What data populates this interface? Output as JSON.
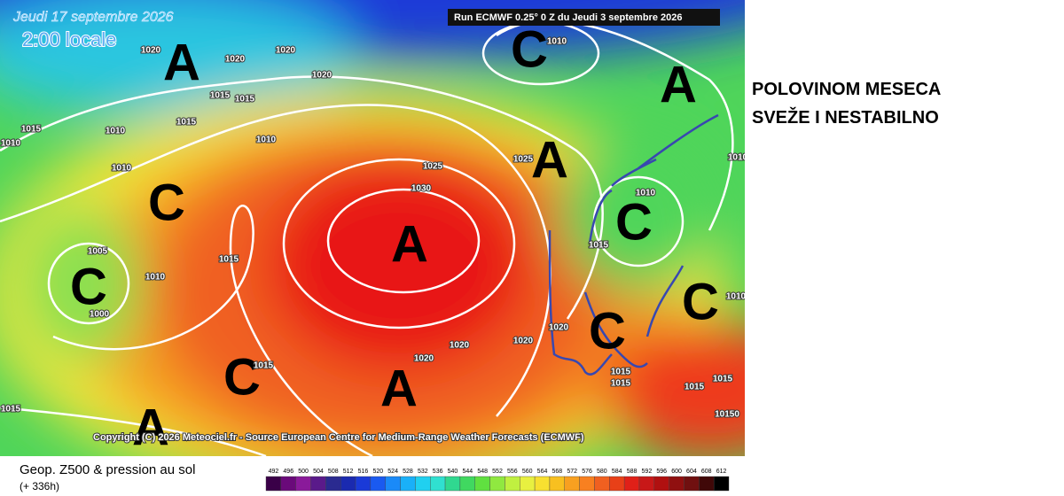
{
  "header": {
    "date": "Jeudi 17 septembre 2026",
    "time": "2:00 locale",
    "run": "Run ECMWF 0.25° 0 Z du Jeudi 3 septembre 2026"
  },
  "annotation": {
    "line1": "POLOVINOM MESECA",
    "line2": "SVEŽE I NESTABILNO"
  },
  "map": {
    "pressure_centers": [
      "A",
      "C",
      "A",
      "C",
      "A",
      "C",
      "C",
      "A",
      "C",
      "C",
      "C",
      "A",
      "A"
    ],
    "isobar_labels": [
      "1020",
      "1020",
      "1020",
      "1020",
      "1015",
      "1015",
      "1015",
      "1010",
      "1015",
      "1010",
      "1010",
      "1010",
      "1025",
      "1030",
      "1010",
      "1025",
      "1010",
      "1015",
      "1005",
      "1010",
      "1015",
      "1000",
      "1015",
      "1020",
      "1020",
      "1020",
      "1020",
      "1015",
      "1015",
      "1015",
      "1015",
      "10150",
      "1015",
      "1010",
      "1010"
    ],
    "copyright": "Copyright (C) 2026 Meteociel.fr - Source European Centre for Medium-Range Weather Forecasts (ECMWF)"
  },
  "legend": {
    "title": "Geop. Z500 & pression au sol",
    "lead": "(+ 336h)",
    "scale": [
      "492",
      "496",
      "500",
      "504",
      "508",
      "512",
      "516",
      "520",
      "524",
      "528",
      "532",
      "536",
      "540",
      "544",
      "548",
      "552",
      "556",
      "560",
      "564",
      "568",
      "572",
      "576",
      "580",
      "584",
      "588",
      "592",
      "596",
      "600",
      "604",
      "608",
      "612"
    ]
  }
}
